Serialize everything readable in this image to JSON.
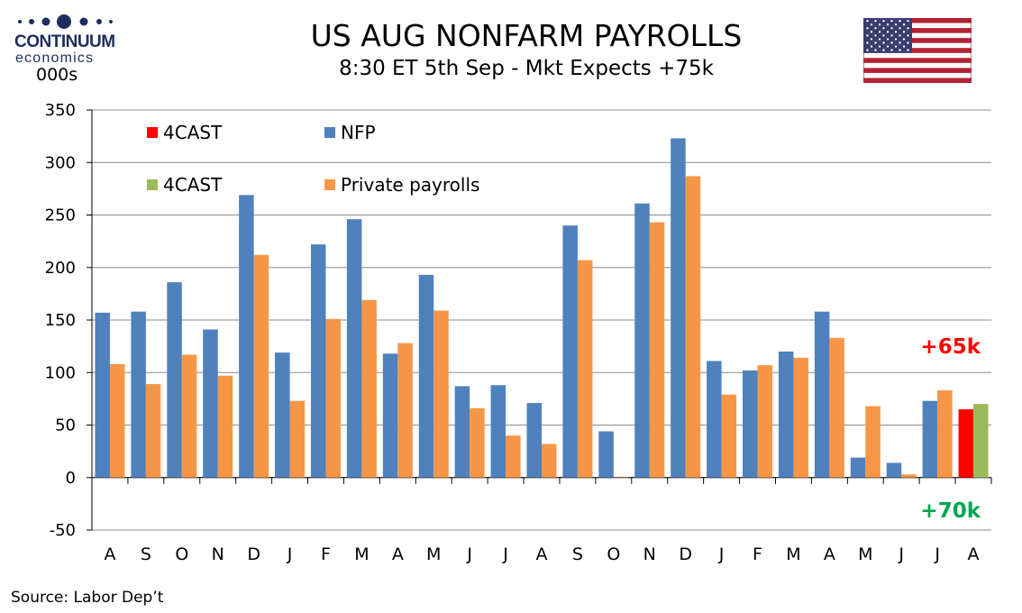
{
  "header": {
    "brand": "CONTINUUM",
    "brand_sub": "economics",
    "units": "000s",
    "title": "US AUG NONFARM PAYROLLS",
    "subtitle": "8:30 ET 5th Sep - Mkt Expects +75k",
    "flag_icon": "us-flag-icon"
  },
  "footer": {
    "source": "Source: Labor Dep’t"
  },
  "colors": {
    "nfp": "#4f81bd",
    "private": "#f79646",
    "forecast_nfp": "#ff0000",
    "forecast_private": "#9bbb59",
    "label_red": "#ff0000",
    "label_green": "#00a651",
    "brand": "#1f2d5c"
  },
  "chart_data": {
    "type": "bar",
    "title": "US AUG NONFARM PAYROLLS",
    "ylabel": "000s",
    "ylim": [
      -50,
      350
    ],
    "yticks": [
      -50,
      0,
      50,
      100,
      150,
      200,
      250,
      300,
      350
    ],
    "grid": true,
    "legend_position": "top-left",
    "categories": [
      "A",
      "S",
      "O",
      "N",
      "D",
      "J",
      "F",
      "M",
      "A",
      "M",
      "J",
      "J",
      "A",
      "S",
      "O",
      "N",
      "D",
      "J",
      "F",
      "M",
      "A",
      "M",
      "J",
      "J",
      "A"
    ],
    "series": [
      {
        "name": "NFP",
        "values": [
          157,
          158,
          186,
          141,
          269,
          119,
          222,
          246,
          118,
          193,
          87,
          88,
          71,
          240,
          44,
          261,
          323,
          111,
          102,
          120,
          158,
          19,
          14,
          73,
          null
        ]
      },
      {
        "name": "Private payrolls",
        "values": [
          108,
          89,
          117,
          97,
          212,
          73,
          151,
          169,
          128,
          159,
          66,
          40,
          32,
          207,
          0,
          243,
          287,
          79,
          107,
          114,
          133,
          68,
          3,
          83,
          null
        ]
      },
      {
        "name": "4CAST",
        "values": [
          null,
          null,
          null,
          null,
          null,
          null,
          null,
          null,
          null,
          null,
          null,
          null,
          null,
          null,
          null,
          null,
          null,
          null,
          null,
          null,
          null,
          null,
          null,
          null,
          65
        ]
      },
      {
        "name": "4CAST",
        "values": [
          null,
          null,
          null,
          null,
          null,
          null,
          null,
          null,
          null,
          null,
          null,
          null,
          null,
          null,
          null,
          null,
          null,
          null,
          null,
          null,
          null,
          null,
          null,
          null,
          70
        ]
      }
    ],
    "legend": [
      "4CAST",
      "NFP",
      "4CAST",
      "Private payrolls"
    ],
    "annotations": [
      "+65k",
      "+70k"
    ]
  }
}
